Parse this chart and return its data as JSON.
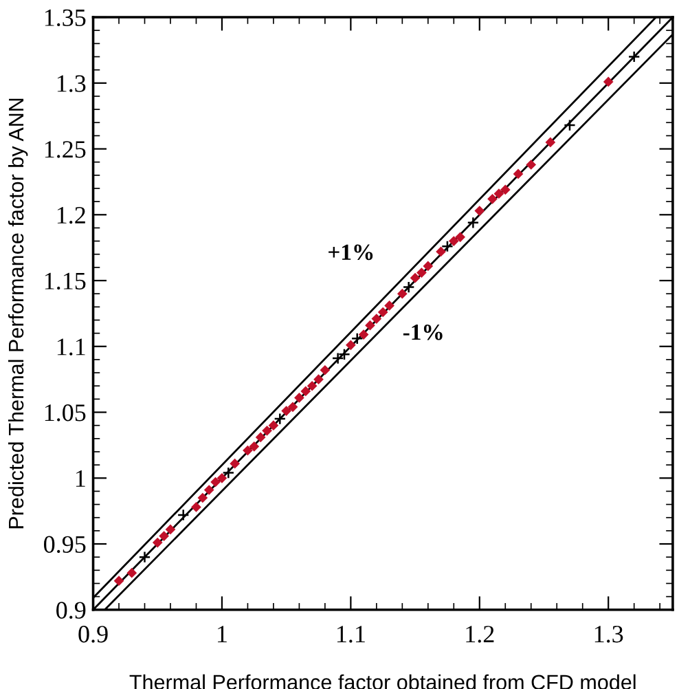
{
  "chart_data": {
    "type": "scatter",
    "xlabel": "Thermal Performance factor obtained from CFD model",
    "ylabel": "Predicted Thermal Performance factor by ANN",
    "xlim": [
      0.9,
      1.35
    ],
    "ylim": [
      0.9,
      1.35
    ],
    "xticks": [
      0.9,
      1,
      1.1,
      1.2,
      1.3
    ],
    "yticks": [
      0.9,
      0.95,
      1,
      1.05,
      1.1,
      1.15,
      1.2,
      1.25,
      1.3,
      1.35
    ],
    "grid": false,
    "series": [
      {
        "type": "line",
        "color": "#000000",
        "marker": "none",
        "x": [
          0.9,
          1.35
        ],
        "values": [
          0.9,
          1.35
        ]
      },
      {
        "type": "line",
        "color": "#000000",
        "marker": "none",
        "x": [
          0.9,
          1.337
        ],
        "values": [
          0.909,
          1.35
        ]
      },
      {
        "type": "line",
        "color": "#000000",
        "marker": "none",
        "x": [
          0.909,
          1.35
        ],
        "values": [
          0.9,
          1.337
        ]
      },
      {
        "color": "#c0102a",
        "marker": "diamond",
        "x": [
          0.92,
          0.93,
          0.95,
          0.955,
          0.96,
          0.98,
          0.985,
          0.99,
          0.995,
          1.0,
          1.01,
          1.02,
          1.025,
          1.03,
          1.035,
          1.04,
          1.05,
          1.055,
          1.06,
          1.065,
          1.07,
          1.075,
          1.08,
          1.1,
          1.11,
          1.115,
          1.12,
          1.125,
          1.13,
          1.14,
          1.15,
          1.155,
          1.16,
          1.17,
          1.18,
          1.185,
          1.2,
          1.21,
          1.215,
          1.22,
          1.23,
          1.24,
          1.255,
          1.3
        ],
        "values": [
          0.922,
          0.928,
          0.951,
          0.956,
          0.961,
          0.978,
          0.985,
          0.991,
          0.997,
          1.0,
          1.011,
          1.021,
          1.024,
          1.031,
          1.036,
          1.04,
          1.051,
          1.054,
          1.061,
          1.066,
          1.07,
          1.075,
          1.082,
          1.101,
          1.109,
          1.116,
          1.121,
          1.126,
          1.131,
          1.14,
          1.152,
          1.156,
          1.161,
          1.172,
          1.18,
          1.183,
          1.203,
          1.212,
          1.216,
          1.219,
          1.231,
          1.238,
          1.255,
          1.301
        ]
      },
      {
        "color": "#000000",
        "marker": "cross",
        "x": [
          0.94,
          0.97,
          1.005,
          1.045,
          1.09,
          1.095,
          1.105,
          1.145,
          1.175,
          1.195,
          1.27,
          1.32
        ],
        "values": [
          0.94,
          0.972,
          1.004,
          1.045,
          1.091,
          1.094,
          1.106,
          1.145,
          1.176,
          1.194,
          1.268,
          1.32
        ]
      }
    ],
    "annotations": [
      "+1%",
      "-1%"
    ]
  }
}
